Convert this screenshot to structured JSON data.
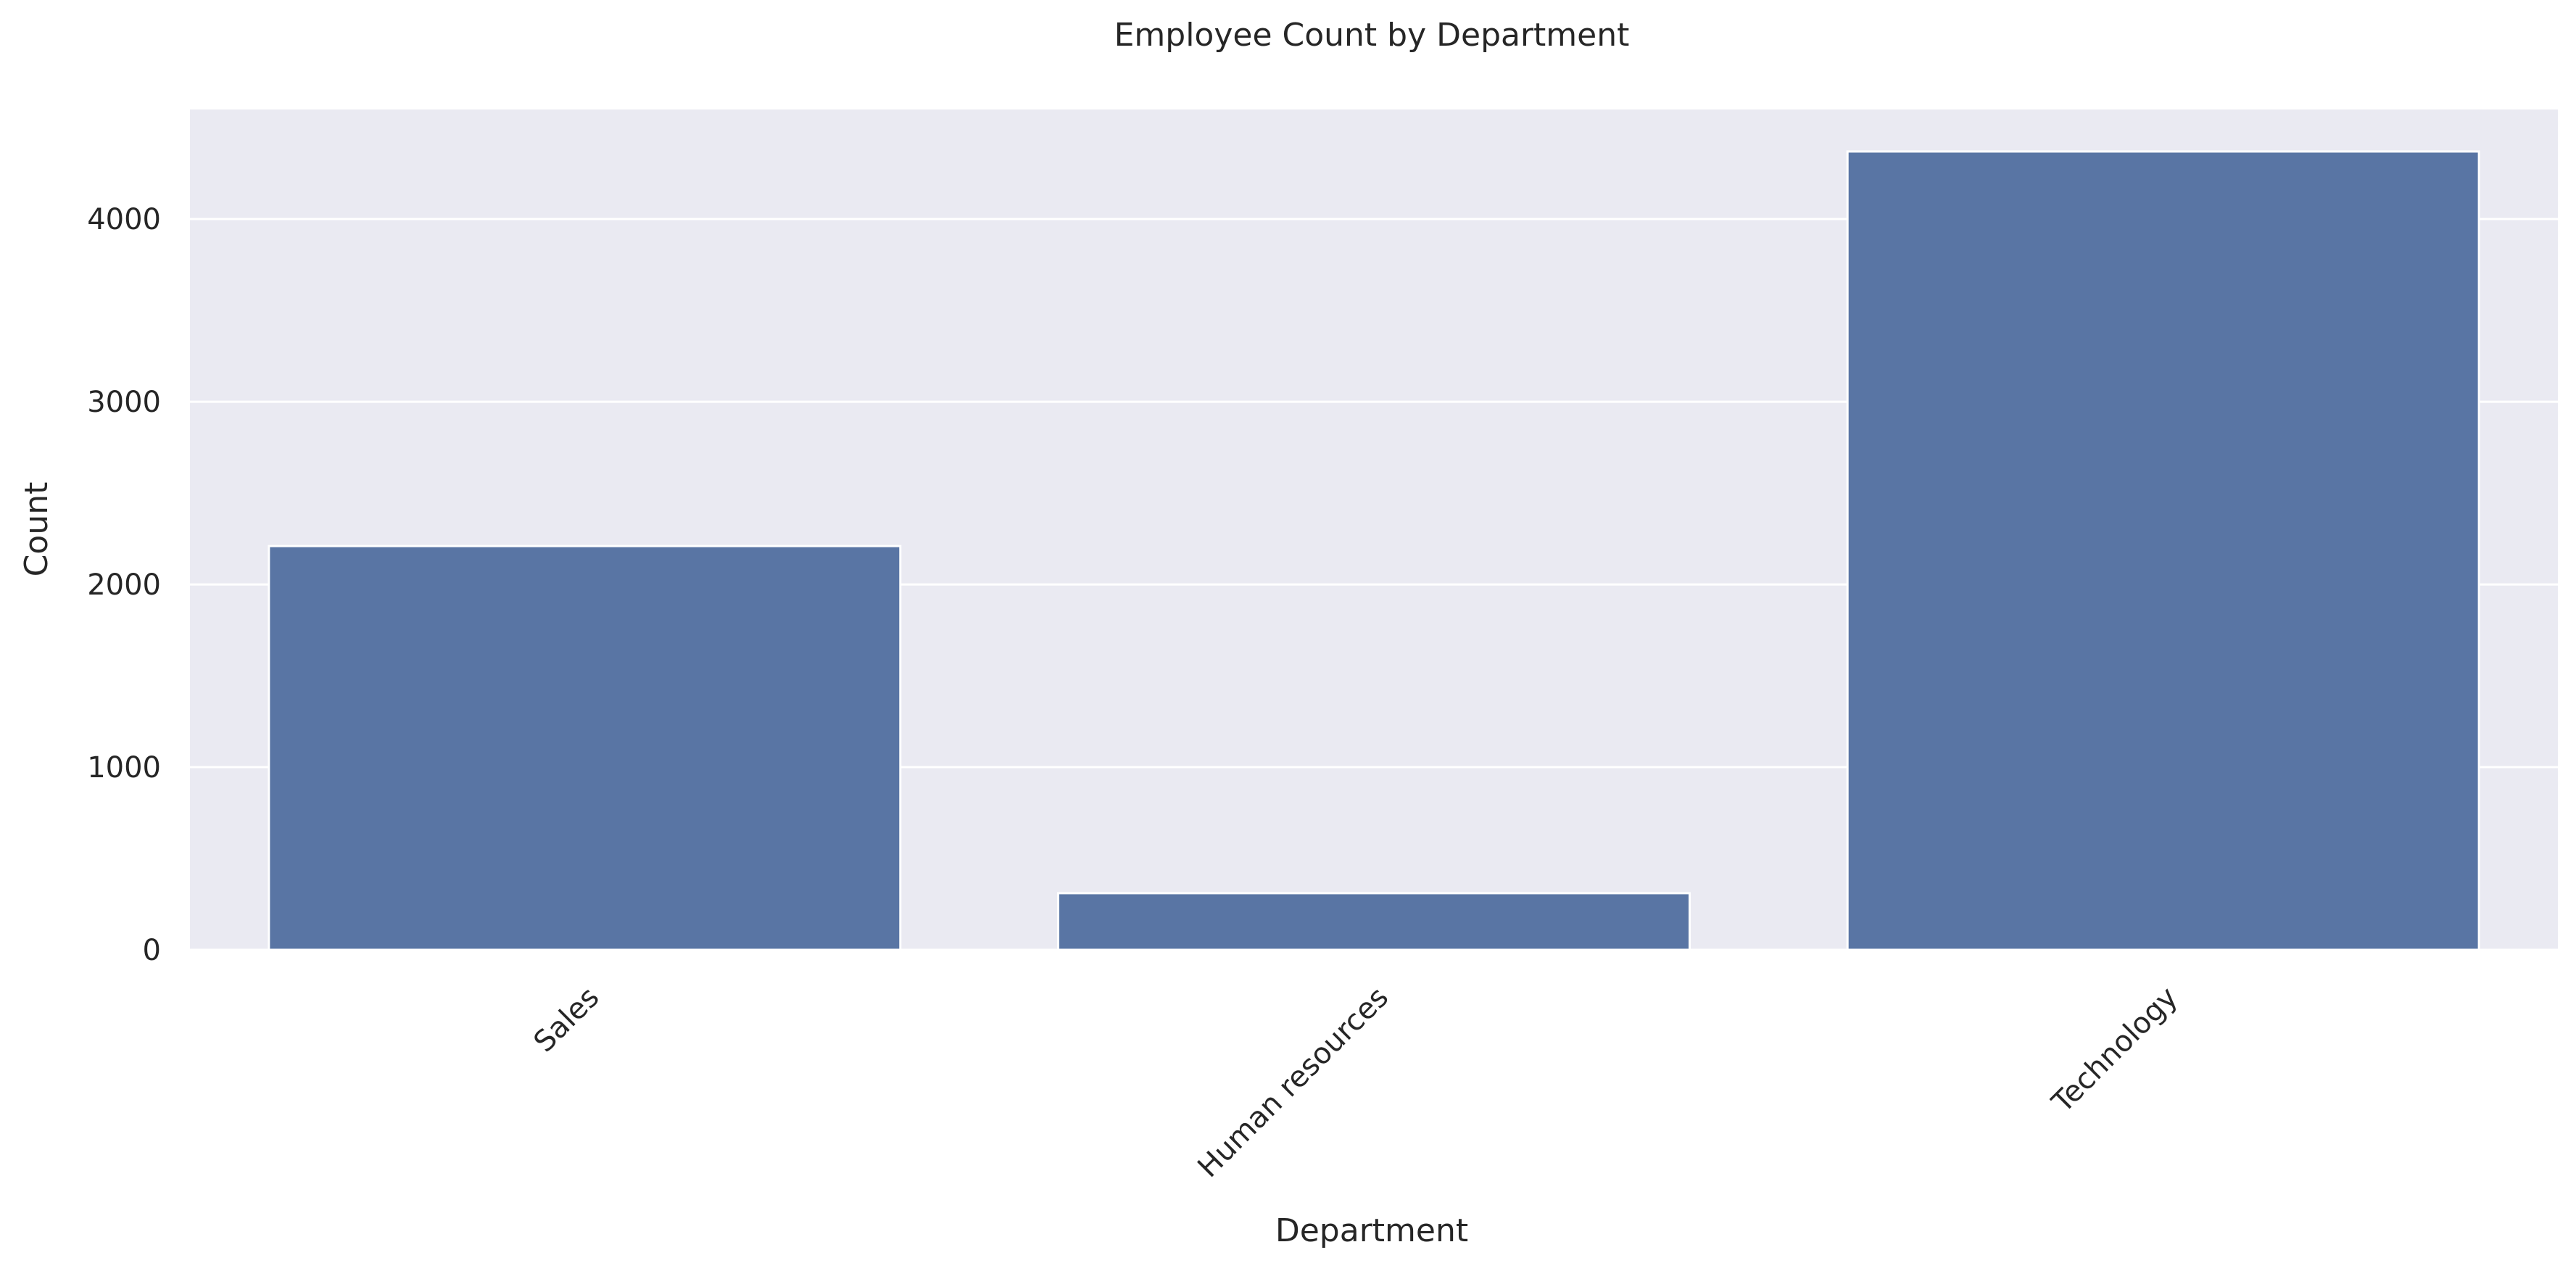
{
  "chart_data": {
    "type": "bar",
    "title": "Employee Count by Department",
    "xlabel": "Department",
    "ylabel": "Count",
    "categories": [
      "Sales",
      "Human resources",
      "Technology"
    ],
    "values": [
      2210,
      310,
      4370
    ],
    "ylim": [
      0,
      4600
    ],
    "yticks": [
      0,
      1000,
      2000,
      3000,
      4000
    ],
    "ytick_labels": [
      "0",
      "1000",
      "2000",
      "3000",
      "4000"
    ],
    "grid": true,
    "xtick_rotation_deg": 45,
    "colors": {
      "bar": "#5975a4",
      "plot_background": "#eaeaf2",
      "grid": "#ffffff",
      "text": "#262626"
    }
  }
}
